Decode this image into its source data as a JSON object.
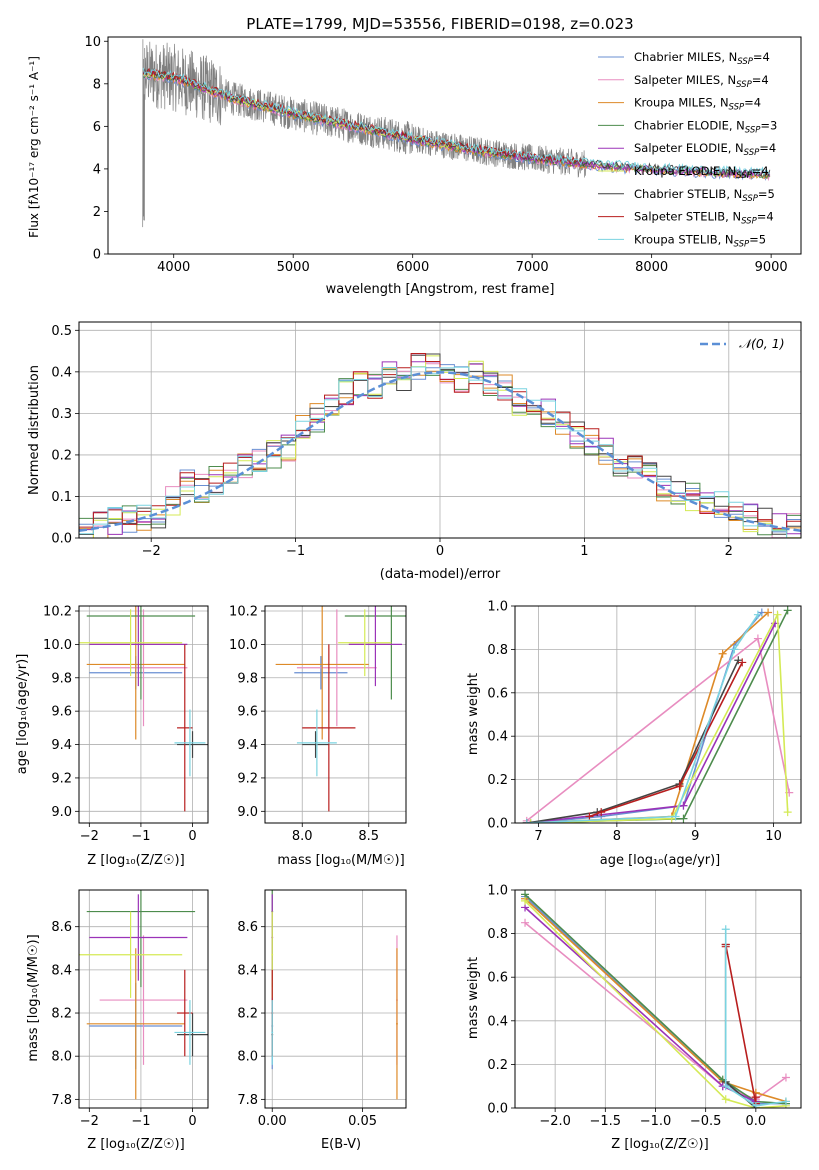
{
  "figure": {
    "title": "PLATE=1799, MJD=53556, FIBERID=0198, z=0.023",
    "spectrum_xlabel": "wavelength [Angstrom, rest frame]",
    "spectrum_ylabel": "Flux [fλ10⁻¹⁷ erg cm⁻² s⁻¹ A⁻¹]",
    "hist_xlabel": "(data-model)/error",
    "hist_ylabel": "Normed distribution",
    "hist_legend": "𝒩(0, 1)",
    "ageZ_xlabel": "Z [log₁₀(Z/Z☉)]",
    "ageZ_ylabel": "age  [log₁₀(age/yr)]",
    "agemass_xlabel": "mass [log₁₀(M/M☉)]",
    "mw_age_xlabel": "age  [log₁₀(age/yr)]",
    "mw_ylabel": "mass weight",
    "massZ_xlabel": "Z [log₁₀(Z/Z☉)]",
    "massZ_ylabel": "mass [log₁₀(M/M☉)]",
    "massEbv_xlabel": "E(B-V)",
    "mw_Z_xlabel": "Z [log₁₀(Z/Z☉)]"
  },
  "models": [
    {
      "name": "Chabrier MILES, N_SSP=4",
      "color": "#6a8fd2",
      "Z": -1.1,
      "Zerr": 0.9,
      "age": 9.83,
      "ageerr": 0.1,
      "mass": 8.14,
      "masserr": 0.2,
      "ebv": 0.0
    },
    {
      "name": "Salpeter MILES, N_SSP=4",
      "color": "#e88dc0",
      "Z": -0.95,
      "Zerr": 0.85,
      "age": 9.86,
      "ageerr": 0.35,
      "mass": 8.26,
      "masserr": 0.3,
      "ebv": 0.069
    },
    {
      "name": "Kroupa MILES, N_SSP=4",
      "color": "#dd8a28",
      "Z": -1.1,
      "Zerr": 0.95,
      "age": 9.88,
      "ageerr": 0.45,
      "mass": 8.15,
      "masserr": 0.35,
      "ebv": 0.069
    },
    {
      "name": "Chabrier ELODIE, N_SSP=3",
      "color": "#4d8c4d",
      "Z": -1.0,
      "Zerr": 1.05,
      "age": 10.17,
      "ageerr": 0.5,
      "mass": 8.67,
      "masserr": 0.35,
      "ebv": 0.0
    },
    {
      "name": "Salpeter ELODIE, N_SSP=4",
      "color": "#9b33b8",
      "Z": -1.05,
      "Zerr": 0.95,
      "age": 10.0,
      "ageerr": 0.25,
      "mass": 8.55,
      "masserr": 0.2,
      "ebv": 0.0
    },
    {
      "name": "Kroupa ELODIE, N_SSP=4",
      "color": "#d4ea55",
      "Z": -1.2,
      "Zerr": 1.0,
      "age": 10.01,
      "ageerr": 0.2,
      "mass": 8.47,
      "masserr": 0.2,
      "ebv": 0.0
    },
    {
      "name": "Chabrier STELIB, N_SSP=5",
      "color": "#444444",
      "Z": 0.0,
      "Zerr": 0.3,
      "age": 9.4,
      "ageerr": 0.08,
      "mass": 8.1,
      "masserr": 0.1,
      "ebv": 0.0
    },
    {
      "name": "Salpeter STELIB, N_SSP=4",
      "color": "#b81e1e",
      "Z": -0.15,
      "Zerr": 0.15,
      "age": 9.5,
      "ageerr": 0.5,
      "mass": 8.2,
      "masserr": 0.2,
      "ebv": 0.0
    },
    {
      "name": "Kroupa STELIB, N_SSP=5",
      "color": "#7ad3e0",
      "Z": -0.05,
      "Zerr": 0.3,
      "age": 9.41,
      "ageerr": 0.2,
      "mass": 8.11,
      "masserr": 0.15,
      "ebv": 0.0
    }
  ],
  "chart_data": [
    {
      "type": "line",
      "title": "PLATE=1799, MJD=53556, FIBERID=0198, z=0.023",
      "xlabel": "wavelength [Angstrom, rest frame]",
      "ylabel": "Flux [fλ10⁻¹⁷ erg cm⁻² s⁻¹ A⁻¹]",
      "xlim": [
        3450,
        9250
      ],
      "ylim": [
        0,
        10.2
      ],
      "xticks": [
        4000,
        5000,
        6000,
        7000,
        8000,
        9000
      ],
      "yticks": [
        0,
        2,
        4,
        6,
        8,
        10
      ],
      "grid": false,
      "legend": "top-right",
      "continuum": {
        "x": [
          3750,
          4000,
          4500,
          5000,
          5500,
          6000,
          6500,
          7000,
          7500,
          8000,
          8500,
          9000
        ],
        "y": [
          8.5,
          8.3,
          7.3,
          6.6,
          6.0,
          5.4,
          4.9,
          4.5,
          4.2,
          4.0,
          3.85,
          3.75
        ]
      }
    },
    {
      "type": "bar",
      "title": "",
      "xlabel": "(data-model)/error",
      "ylabel": "Normed distribution",
      "xlim": [
        -2.5,
        2.5
      ],
      "ylim": [
        0,
        0.52
      ],
      "xticks": [
        -2,
        -1,
        0,
        1,
        2
      ],
      "yticks": [
        0.0,
        0.1,
        0.2,
        0.3,
        0.4,
        0.5
      ],
      "grid": true,
      "legend": "top-right",
      "bins": [
        -2.5,
        -2.4,
        -2.3,
        -2.2,
        -2.1,
        -2.0,
        -1.9,
        -1.8,
        -1.7,
        -1.6,
        -1.5,
        -1.4,
        -1.3,
        -1.2,
        -1.1,
        -1.0,
        -0.9,
        -0.8,
        -0.7,
        -0.6,
        -0.5,
        -0.4,
        -0.3,
        -0.2,
        -0.1,
        0.0,
        0.1,
        0.2,
        0.3,
        0.4,
        0.5,
        0.6,
        0.7,
        0.8,
        0.9,
        1.0,
        1.1,
        1.2,
        1.3,
        1.4,
        1.5,
        1.6,
        1.7,
        1.8,
        1.9,
        2.0,
        2.1,
        2.2,
        2.3,
        2.4,
        2.5
      ],
      "hist_mean": [
        0.03,
        0.03,
        0.04,
        0.045,
        0.05,
        0.055,
        0.09,
        0.13,
        0.12,
        0.14,
        0.15,
        0.17,
        0.18,
        0.2,
        0.22,
        0.26,
        0.29,
        0.33,
        0.35,
        0.37,
        0.36,
        0.39,
        0.38,
        0.41,
        0.42,
        0.4,
        0.38,
        0.4,
        0.37,
        0.36,
        0.33,
        0.32,
        0.3,
        0.27,
        0.25,
        0.23,
        0.21,
        0.18,
        0.17,
        0.15,
        0.12,
        0.11,
        0.1,
        0.09,
        0.08,
        0.06,
        0.05,
        0.04,
        0.03,
        0.03
      ],
      "gaussian": {
        "name": "𝒩(0, 1)",
        "mu": 0,
        "sigma": 1,
        "color": "#5b8fd6"
      }
    },
    {
      "type": "scatter",
      "title": "",
      "xlabel": "Z [log₁₀(Z/Z☉)]",
      "ylabel": "age  [log₁₀(age/yr)]",
      "xlim": [
        -2.2,
        0.3
      ],
      "ylim": [
        8.93,
        10.23
      ],
      "xticks": [
        -2,
        -1,
        0
      ],
      "yticks": [
        9.0,
        9.2,
        9.4,
        9.6,
        9.8,
        10.0,
        10.2
      ],
      "grid": true
    },
    {
      "type": "scatter",
      "title": "",
      "xlabel": "mass [log₁₀(M/M☉)]",
      "ylabel": "",
      "xlim": [
        7.72,
        8.78
      ],
      "ylim": [
        8.93,
        10.23
      ],
      "xticks": [
        8.0,
        8.5
      ],
      "yticks": [
        9.0,
        9.2,
        9.4,
        9.6,
        9.8,
        10.0,
        10.2
      ],
      "grid": true
    },
    {
      "type": "line",
      "title": "",
      "xlabel": "age  [log₁₀(age/yr)]",
      "ylabel": "mass weight",
      "xlim": [
        6.7,
        10.35
      ],
      "ylim": [
        0,
        1
      ],
      "xticks": [
        7,
        8,
        9,
        10
      ],
      "yticks": [
        0.0,
        0.2,
        0.4,
        0.6,
        0.8,
        1.0
      ],
      "grid": true,
      "series": [
        {
          "color": "#6a8fd2",
          "x": [
            6.9,
            7.8,
            8.85,
            9.5,
            9.85
          ],
          "y": [
            0.0,
            0.03,
            0.08,
            0.82,
            0.97
          ]
        },
        {
          "color": "#e88dc0",
          "x": [
            6.85,
            9.8,
            10.2
          ],
          "y": [
            0.01,
            0.85,
            0.14
          ]
        },
        {
          "color": "#dd8a28",
          "x": [
            6.85,
            8.7,
            9.35,
            9.93
          ],
          "y": [
            0.0,
            0.03,
            0.78,
            0.97
          ]
        },
        {
          "color": "#4d8c4d",
          "x": [
            6.85,
            8.85,
            10.18
          ],
          "y": [
            0.0,
            0.02,
            0.98
          ]
        },
        {
          "color": "#9b33b8",
          "x": [
            6.85,
            8.85,
            10.02
          ],
          "y": [
            0.0,
            0.08,
            0.92
          ]
        },
        {
          "color": "#d4ea55",
          "x": [
            6.9,
            8.7,
            10.05,
            10.18
          ],
          "y": [
            0.0,
            0.02,
            0.96,
            0.05
          ]
        },
        {
          "color": "#444444",
          "x": [
            6.85,
            7.75,
            8.8,
            9.55
          ],
          "y": [
            0.0,
            0.05,
            0.18,
            0.75
          ]
        },
        {
          "color": "#b81e1e",
          "x": [
            7.65,
            7.8,
            8.8,
            9.6
          ],
          "y": [
            0.03,
            0.05,
            0.17,
            0.74
          ]
        },
        {
          "color": "#7ad3e0",
          "x": [
            6.85,
            8.75,
            9.5,
            9.8
          ],
          "y": [
            0.0,
            0.03,
            0.8,
            0.96
          ]
        }
      ]
    },
    {
      "type": "scatter",
      "title": "",
      "xlabel": "Z [log₁₀(Z/Z☉)]",
      "ylabel": "mass [log₁₀(M/M☉)]",
      "xlim": [
        -2.2,
        0.3
      ],
      "ylim": [
        7.76,
        8.77
      ],
      "xticks": [
        -2,
        -1,
        0
      ],
      "yticks": [
        7.8,
        8.0,
        8.2,
        8.4,
        8.6
      ],
      "grid": true
    },
    {
      "type": "scatter",
      "title": "",
      "xlabel": "E(B-V)",
      "ylabel": "",
      "xlim": [
        -0.004,
        0.074
      ],
      "ylim": [
        7.76,
        8.77
      ],
      "xticks": [
        0.0,
        0.05
      ],
      "yticks": [
        7.8,
        8.0,
        8.2,
        8.4,
        8.6
      ],
      "grid": true
    },
    {
      "type": "line",
      "title": "",
      "xlabel": "Z [log₁₀(Z/Z☉)]",
      "ylabel": "mass weight",
      "xlim": [
        -2.4,
        0.45
      ],
      "ylim": [
        0,
        1
      ],
      "xticks": [
        -2.0,
        -1.5,
        -1.0,
        -0.5,
        0.0
      ],
      "yticks": [
        0.0,
        0.2,
        0.4,
        0.6,
        0.8,
        1.0
      ],
      "grid": true,
      "series": [
        {
          "color": "#6a8fd2",
          "x": [
            -2.3,
            -0.33,
            0.0,
            0.3
          ],
          "y": [
            0.97,
            0.12,
            0.02,
            0.02
          ]
        },
        {
          "color": "#e88dc0",
          "x": [
            -2.3,
            -0.33,
            0.0,
            0.3
          ],
          "y": [
            0.85,
            0.1,
            0.04,
            0.14
          ]
        },
        {
          "color": "#dd8a28",
          "x": [
            -2.3,
            -0.33,
            0.0,
            0.3
          ],
          "y": [
            0.96,
            0.12,
            0.07,
            0.03
          ]
        },
        {
          "color": "#4d8c4d",
          "x": [
            -2.3,
            -0.33,
            0.0,
            0.3
          ],
          "y": [
            0.98,
            0.13,
            0.03,
            0.02
          ]
        },
        {
          "color": "#9b33b8",
          "x": [
            -2.3,
            -0.33,
            0.0
          ],
          "y": [
            0.92,
            0.1,
            0.03
          ]
        },
        {
          "color": "#d4ea55",
          "x": [
            -2.3,
            -0.3,
            0.0,
            0.3
          ],
          "y": [
            0.95,
            0.04,
            0.0,
            0.01
          ]
        },
        {
          "color": "#444444",
          "x": [
            -0.3,
            -0.3,
            0.0
          ],
          "y": [
            0.75,
            0.12,
            0.0
          ]
        },
        {
          "color": "#b81e1e",
          "x": [
            -0.3,
            -0.3,
            0.0,
            0.0
          ],
          "y": [
            0.74,
            0.75,
            0.02,
            0.05
          ]
        },
        {
          "color": "#7ad3e0",
          "x": [
            -0.3,
            -0.3,
            0.0,
            0.3
          ],
          "y": [
            0.82,
            0.1,
            0.01,
            0.03
          ]
        }
      ]
    }
  ]
}
